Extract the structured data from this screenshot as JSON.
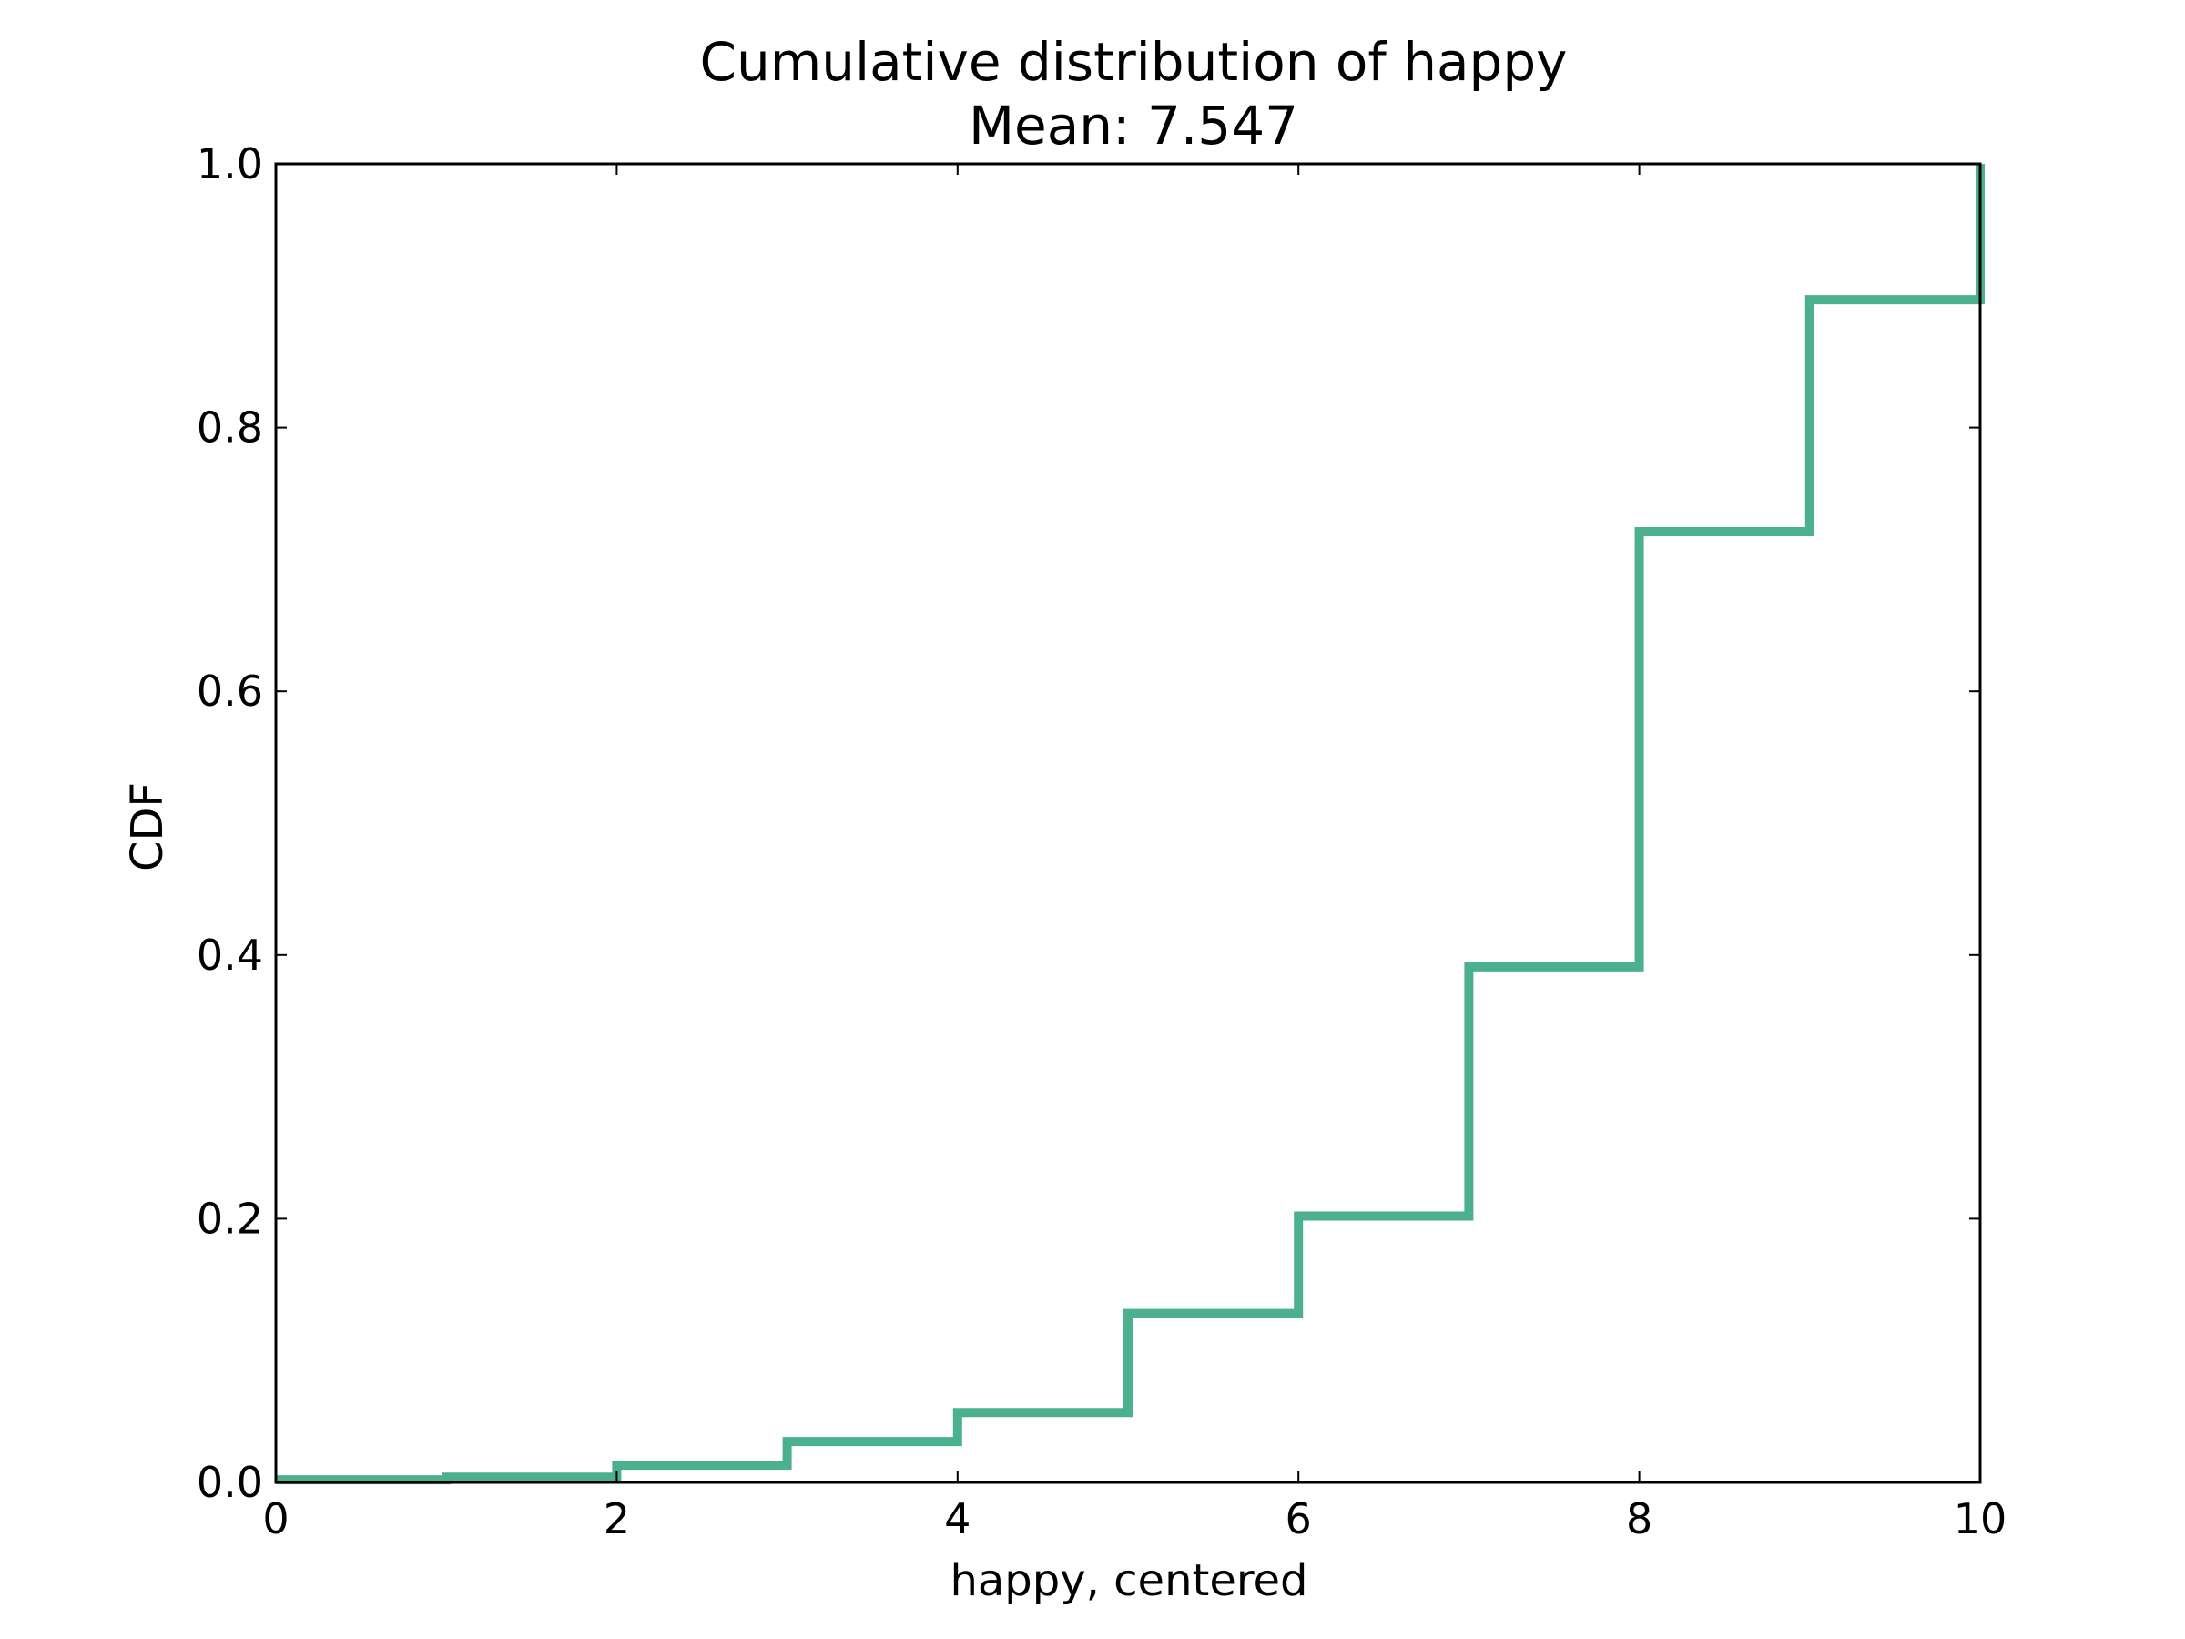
{
  "chart_data": {
    "type": "line",
    "style": "step",
    "title": "Cumulative distribution of happy",
    "subtitle": "Mean: 7.547",
    "xlabel": "happy, centered",
    "ylabel": "CDF",
    "xlim": [
      0,
      10
    ],
    "ylim": [
      0.0,
      1.0
    ],
    "x_ticks": [
      "0",
      "2",
      "4",
      "6",
      "8",
      "10"
    ],
    "y_ticks": [
      "0.0",
      "0.2",
      "0.4",
      "0.6",
      "0.8",
      "1.0"
    ],
    "grid": false,
    "series": [
      {
        "color": "#4bb08e",
        "x": [
          0,
          1,
          2,
          3,
          4,
          5,
          6,
          7,
          8,
          9,
          10
        ],
        "y": [
          0.002,
          0.004,
          0.013,
          0.031,
          0.053,
          0.128,
          0.202,
          0.391,
          0.721,
          0.897,
          1.0
        ]
      }
    ]
  }
}
